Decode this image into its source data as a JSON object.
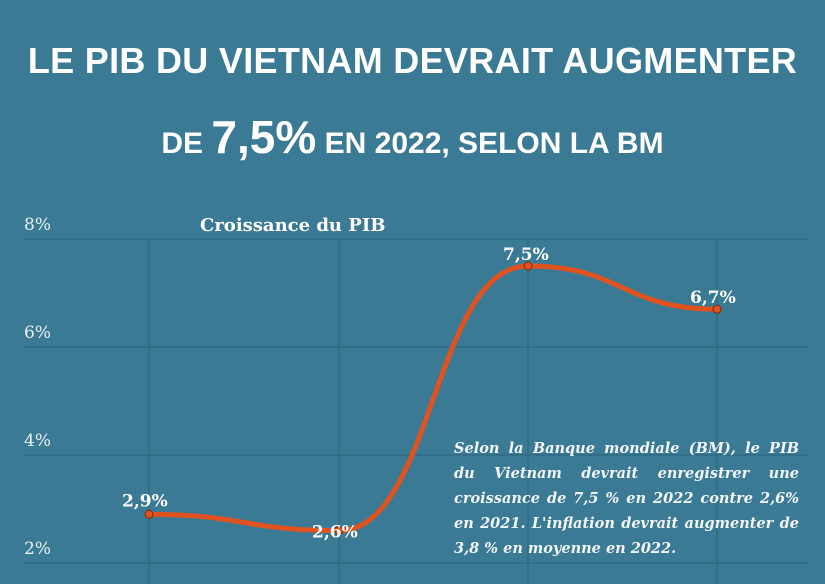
{
  "header": {
    "line1": "LE PIB DU VIETNAM DEVRAIT AUGMENTER",
    "line2_prefix": "DE",
    "line2_highlight": "7,5%",
    "line2_suffix": "EN 2022, SELON LA BM"
  },
  "note": "Selon la Banque mondiale (BM), le PIB du Vietnam devrait enregistrer une croissance de 7,5 % en 2022 contre 2,6% en 2021. L'inflation devrait augmenter de 3,8 % en moyenne en 2022.",
  "colors": {
    "background": "#3b7a94",
    "line": "#e0521f",
    "grid": "#2f6880"
  },
  "chart_data": {
    "type": "line",
    "title": "Croissance du PIB",
    "ylim": [
      2,
      8
    ],
    "yticks": [
      "8%",
      "6%",
      "4%",
      "2%"
    ],
    "ytick_values": [
      8,
      6,
      4,
      2
    ],
    "grid": true,
    "values": [
      2.9,
      2.6,
      7.5,
      6.7
    ],
    "labels": [
      "2,9%",
      "2,6%",
      "7,5%",
      "6,7%"
    ]
  }
}
